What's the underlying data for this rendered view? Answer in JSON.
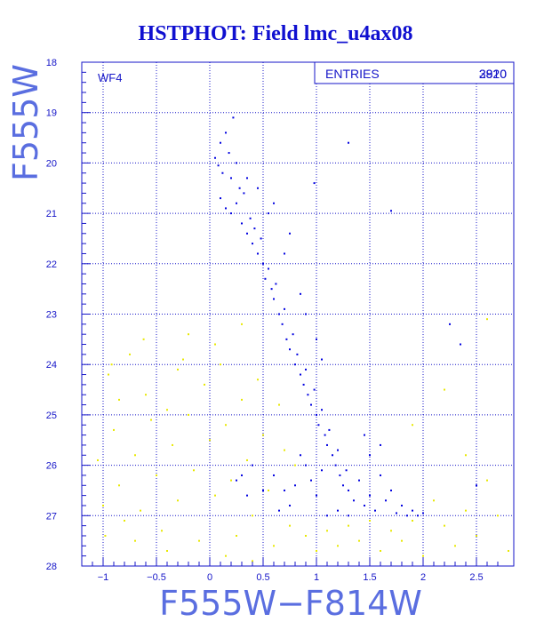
{
  "chart_data": {
    "type": "scatter",
    "title": "HSTPHOT: Field lmc_u4ax08",
    "xlabel": "F555W−F814W",
    "ylabel": "F555W",
    "xlim": [
      -1.2,
      2.85
    ],
    "ylim": [
      28,
      18
    ],
    "y_inverted": true,
    "grid": true,
    "grid_style": "dotted",
    "x_ticks": [
      -1,
      -0.5,
      0,
      0.5,
      1,
      1.5,
      2,
      2.5
    ],
    "x_tick_labels": [
      "−1",
      "−0.5",
      "0",
      "0.5",
      "1",
      "1.5",
      "2",
      "2.5"
    ],
    "y_ticks": [
      18,
      19,
      20,
      21,
      22,
      23,
      24,
      25,
      26,
      27,
      28
    ],
    "y_tick_labels": [
      "18",
      "19",
      "20",
      "21",
      "22",
      "23",
      "24",
      "25",
      "26",
      "27",
      "28"
    ],
    "panel_label": "WF4",
    "stats_box": {
      "label": "ENTRIES",
      "values": [
        "2820",
        "3910"
      ]
    },
    "colors": {
      "frame": "#1515c8",
      "title": "#1010d0",
      "axis_label": "#5a6ee0",
      "series_blue": "#0000e0",
      "series_yellow": "#e8e800"
    },
    "series": [
      {
        "color": "#0000e0",
        "points": [
          [
            0.05,
            19.9
          ],
          [
            0.08,
            20.05
          ],
          [
            0.1,
            19.6
          ],
          [
            0.12,
            20.2
          ],
          [
            0.15,
            19.4
          ],
          [
            0.18,
            19.8
          ],
          [
            0.2,
            20.3
          ],
          [
            0.22,
            19.1
          ],
          [
            0.25,
            20.0
          ],
          [
            0.28,
            20.5
          ],
          [
            0.1,
            20.7
          ],
          [
            0.15,
            20.9
          ],
          [
            0.2,
            21.0
          ],
          [
            0.25,
            20.8
          ],
          [
            0.3,
            21.2
          ],
          [
            0.32,
            20.6
          ],
          [
            0.35,
            21.4
          ],
          [
            0.38,
            21.1
          ],
          [
            0.4,
            21.6
          ],
          [
            0.42,
            21.3
          ],
          [
            0.45,
            21.8
          ],
          [
            0.48,
            21.5
          ],
          [
            0.5,
            22.0
          ],
          [
            0.52,
            22.3
          ],
          [
            0.55,
            22.1
          ],
          [
            0.58,
            22.5
          ],
          [
            0.6,
            22.7
          ],
          [
            0.62,
            22.4
          ],
          [
            0.65,
            23.0
          ],
          [
            0.68,
            23.2
          ],
          [
            0.7,
            22.9
          ],
          [
            0.72,
            23.5
          ],
          [
            0.75,
            23.7
          ],
          [
            0.78,
            23.4
          ],
          [
            0.8,
            24.0
          ],
          [
            0.82,
            23.8
          ],
          [
            0.85,
            24.2
          ],
          [
            0.88,
            24.4
          ],
          [
            0.9,
            24.1
          ],
          [
            0.92,
            24.6
          ],
          [
            0.95,
            24.8
          ],
          [
            0.98,
            24.5
          ],
          [
            1.0,
            25.0
          ],
          [
            1.02,
            25.2
          ],
          [
            1.05,
            24.9
          ],
          [
            1.08,
            25.4
          ],
          [
            1.1,
            25.6
          ],
          [
            1.12,
            25.3
          ],
          [
            1.15,
            25.8
          ],
          [
            1.18,
            26.0
          ],
          [
            1.2,
            25.7
          ],
          [
            1.22,
            26.2
          ],
          [
            1.25,
            26.4
          ],
          [
            1.28,
            26.1
          ],
          [
            1.3,
            26.5
          ],
          [
            1.35,
            26.7
          ],
          [
            1.4,
            26.3
          ],
          [
            1.45,
            26.8
          ],
          [
            1.5,
            26.6
          ],
          [
            1.55,
            26.9
          ],
          [
            1.6,
            26.2
          ],
          [
            1.65,
            26.7
          ],
          [
            1.7,
            26.5
          ],
          [
            1.75,
            26.95
          ],
          [
            1.8,
            26.8
          ],
          [
            1.85,
            27.0
          ],
          [
            1.9,
            26.9
          ],
          [
            1.95,
            27.0
          ],
          [
            2.0,
            26.95
          ],
          [
            0.9,
            26.0
          ],
          [
            0.95,
            26.3
          ],
          [
            1.0,
            26.6
          ],
          [
            1.05,
            26.1
          ],
          [
            0.85,
            25.8
          ],
          [
            0.8,
            26.4
          ],
          [
            0.75,
            26.8
          ],
          [
            0.7,
            26.5
          ],
          [
            0.65,
            26.9
          ],
          [
            0.6,
            26.2
          ],
          [
            1.1,
            27.0
          ],
          [
            1.2,
            26.9
          ],
          [
            1.3,
            27.0
          ],
          [
            1.45,
            25.4
          ],
          [
            1.5,
            25.8
          ],
          [
            1.6,
            25.6
          ],
          [
            1.0,
            23.5
          ],
          [
            1.05,
            23.9
          ],
          [
            0.9,
            23.0
          ],
          [
            0.85,
            22.6
          ],
          [
            0.7,
            21.8
          ],
          [
            0.75,
            21.4
          ],
          [
            0.55,
            21.0
          ],
          [
            0.45,
            20.5
          ],
          [
            0.35,
            20.3
          ],
          [
            0.6,
            20.8
          ],
          [
            0.98,
            20.4
          ],
          [
            1.3,
            19.6
          ],
          [
            1.7,
            20.95
          ],
          [
            2.25,
            23.2
          ],
          [
            2.35,
            23.6
          ],
          [
            2.5,
            26.4
          ],
          [
            0.5,
            26.5
          ],
          [
            0.4,
            26.0
          ],
          [
            0.3,
            26.2
          ],
          [
            0.25,
            26.3
          ],
          [
            0.35,
            26.6
          ]
        ]
      },
      {
        "color": "#e8e800",
        "points": [
          [
            -0.95,
            24.2
          ],
          [
            -0.9,
            25.3
          ],
          [
            -0.85,
            26.4
          ],
          [
            -0.8,
            27.1
          ],
          [
            -0.75,
            23.8
          ],
          [
            -0.7,
            25.8
          ],
          [
            -0.65,
            26.9
          ],
          [
            -0.6,
            24.6
          ],
          [
            -0.55,
            25.1
          ],
          [
            -0.5,
            26.2
          ],
          [
            -0.45,
            27.3
          ],
          [
            -0.4,
            24.9
          ],
          [
            -0.35,
            25.6
          ],
          [
            -0.3,
            26.7
          ],
          [
            -0.25,
            23.9
          ],
          [
            -0.2,
            25.0
          ],
          [
            -0.15,
            26.1
          ],
          [
            -0.1,
            27.5
          ],
          [
            -0.05,
            24.4
          ],
          [
            0.0,
            25.5
          ],
          [
            0.05,
            26.6
          ],
          [
            0.1,
            24.0
          ],
          [
            0.15,
            25.2
          ],
          [
            0.2,
            26.3
          ],
          [
            0.25,
            27.4
          ],
          [
            0.3,
            24.7
          ],
          [
            0.35,
            25.9
          ],
          [
            0.4,
            27.0
          ],
          [
            0.45,
            24.3
          ],
          [
            0.5,
            25.4
          ],
          [
            0.55,
            26.5
          ],
          [
            0.6,
            27.6
          ],
          [
            0.65,
            24.8
          ],
          [
            0.7,
            25.7
          ],
          [
            0.75,
            27.2
          ],
          [
            0.8,
            26.0
          ],
          [
            0.9,
            27.4
          ],
          [
            1.0,
            27.7
          ],
          [
            1.1,
            27.3
          ],
          [
            1.2,
            27.6
          ],
          [
            1.3,
            27.2
          ],
          [
            1.4,
            27.5
          ],
          [
            1.5,
            27.1
          ],
          [
            1.6,
            27.7
          ],
          [
            1.7,
            27.3
          ],
          [
            1.8,
            27.5
          ],
          [
            1.9,
            27.1
          ],
          [
            2.0,
            27.8
          ],
          [
            2.1,
            26.7
          ],
          [
            2.2,
            27.2
          ],
          [
            2.3,
            27.6
          ],
          [
            2.4,
            26.9
          ],
          [
            2.5,
            27.4
          ],
          [
            2.6,
            26.3
          ],
          [
            2.7,
            27.0
          ],
          [
            2.8,
            27.7
          ],
          [
            2.6,
            23.1
          ],
          [
            2.2,
            24.5
          ],
          [
            1.9,
            25.2
          ],
          [
            2.4,
            25.8
          ],
          [
            -1.05,
            25.9
          ],
          [
            -1.0,
            26.8
          ],
          [
            -0.98,
            27.4
          ],
          [
            -0.92,
            24.0
          ],
          [
            -0.62,
            23.5
          ],
          [
            -0.3,
            24.1
          ],
          [
            0.05,
            23.6
          ],
          [
            -0.7,
            27.5
          ],
          [
            -0.4,
            27.7
          ],
          [
            0.15,
            27.8
          ],
          [
            0.4,
            27.9
          ],
          [
            -0.2,
            23.4
          ],
          [
            0.3,
            23.2
          ],
          [
            -0.85,
            24.7
          ]
        ]
      }
    ]
  }
}
